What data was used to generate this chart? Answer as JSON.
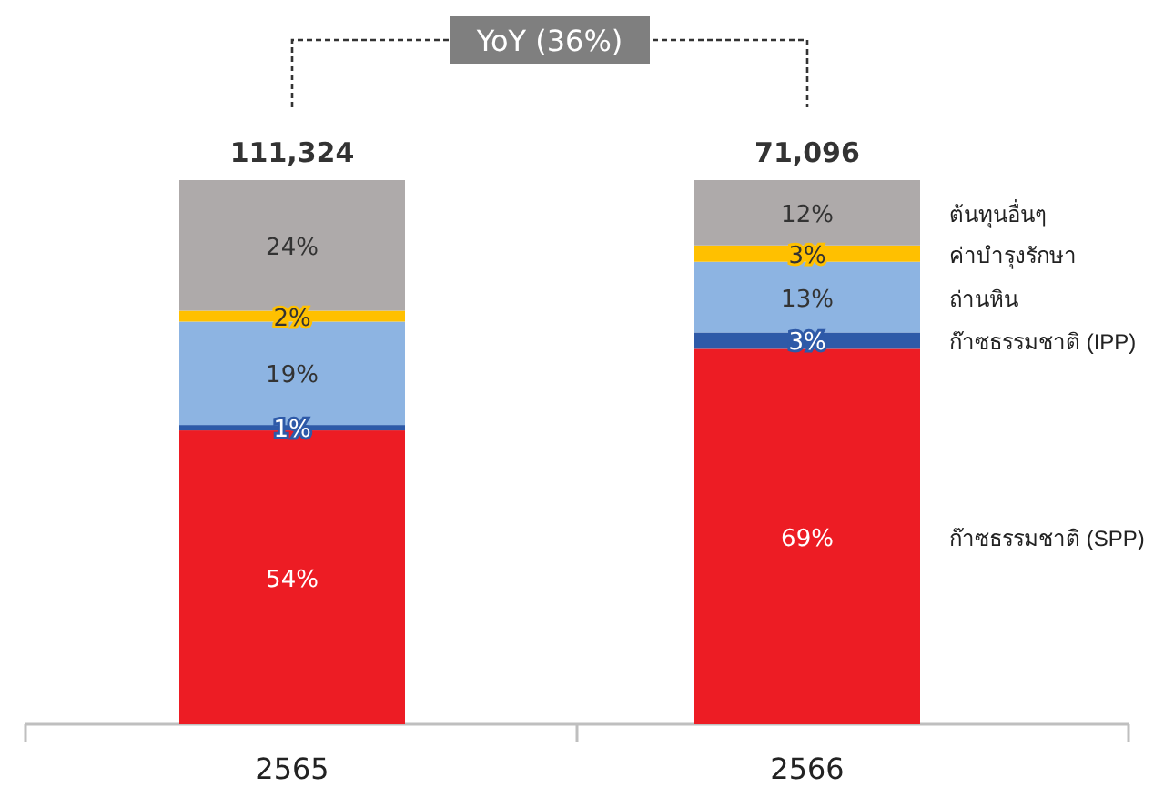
{
  "chart_data": {
    "type": "bar",
    "stacked": true,
    "categories": [
      "2565",
      "2566"
    ],
    "series": [
      {
        "name": "ก๊าซธรรมชาติ (SPP)",
        "color": "#ed1c24",
        "values": [
          54,
          69
        ],
        "value_labels": [
          "54%",
          "69%"
        ]
      },
      {
        "name": "ก๊าซธรรมชาติ (IPP)",
        "color": "#2e5aa8",
        "values": [
          1,
          3
        ],
        "value_labels": [
          "1%",
          "3%"
        ]
      },
      {
        "name": "ถ่านหิน",
        "color": "#8db4e2",
        "values": [
          19,
          13
        ],
        "value_labels": [
          "19%",
          "13%"
        ]
      },
      {
        "name": "ค่าบำรุงรักษา",
        "color": "#ffc000",
        "values": [
          2,
          3
        ],
        "value_labels": [
          "2%",
          "3%"
        ]
      },
      {
        "name": "ต้นทุนอื่นๆ",
        "color": "#aeaaaa",
        "values": [
          24,
          12
        ],
        "value_labels": [
          "24%",
          "12%"
        ]
      }
    ],
    "annotations": [
      "YoY (36%)",
      "111,324",
      "71,096"
    ]
  }
}
